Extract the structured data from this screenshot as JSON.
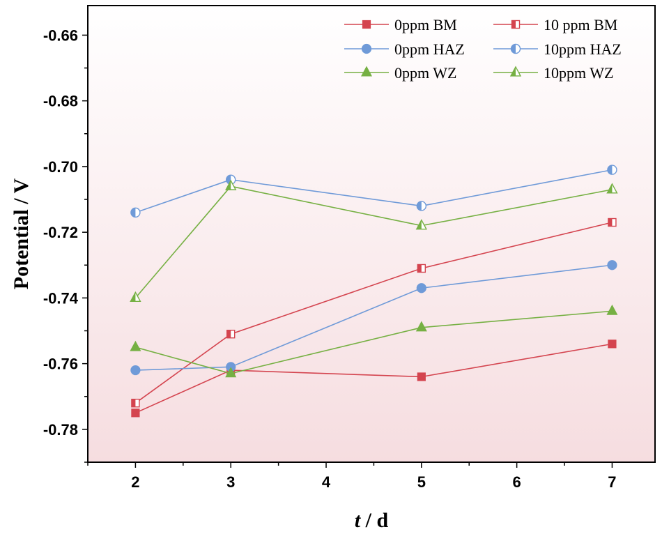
{
  "chart_data": {
    "type": "line",
    "xlabel_italic": "t",
    "xlabel_rest": " / d",
    "ylabel": "Potential / V",
    "xlim": [
      1.5,
      7.45
    ],
    "ylim": [
      -0.79,
      -0.651
    ],
    "x_ticks": [
      2,
      3,
      4,
      5,
      6,
      7
    ],
    "y_ticks": [
      -0.78,
      -0.76,
      -0.74,
      -0.72,
      -0.7,
      -0.68,
      -0.66
    ],
    "y_tick_labels": [
      "-0.78",
      "-0.76",
      "-0.74",
      "-0.72",
      "-0.70",
      "-0.68",
      "-0.66"
    ],
    "background_gradient": [
      "#ffffff",
      "#f6dde0"
    ],
    "grid": false,
    "legend_position": "top-right",
    "series": [
      {
        "name": "0ppm BM",
        "color": "#d4444f",
        "marker": "square",
        "fill": "full",
        "x": [
          2,
          3,
          5,
          7
        ],
        "y": [
          -0.775,
          -0.762,
          -0.764,
          -0.754
        ]
      },
      {
        "name": "10 ppm BM",
        "color": "#d4444f",
        "marker": "square",
        "fill": "half",
        "x": [
          2,
          3,
          5,
          7
        ],
        "y": [
          -0.772,
          -0.751,
          -0.731,
          -0.717
        ]
      },
      {
        "name": "0ppm HAZ",
        "color": "#6f9ad8",
        "marker": "circle",
        "fill": "full",
        "x": [
          2,
          3,
          5,
          7
        ],
        "y": [
          -0.762,
          -0.761,
          -0.737,
          -0.73
        ]
      },
      {
        "name": "10ppm HAZ",
        "color": "#6f9ad8",
        "marker": "circle",
        "fill": "half",
        "x": [
          2,
          3,
          5,
          7
        ],
        "y": [
          -0.714,
          -0.704,
          -0.712,
          -0.701
        ]
      },
      {
        "name": "0ppm WZ",
        "color": "#76b043",
        "marker": "triangle",
        "fill": "full",
        "x": [
          2,
          3,
          5,
          7
        ],
        "y": [
          -0.755,
          -0.763,
          -0.749,
          -0.744
        ]
      },
      {
        "name": "10ppm WZ",
        "color": "#76b043",
        "marker": "triangle",
        "fill": "half",
        "x": [
          2,
          3,
          5,
          7
        ],
        "y": [
          -0.74,
          -0.706,
          -0.718,
          -0.707
        ]
      }
    ]
  }
}
